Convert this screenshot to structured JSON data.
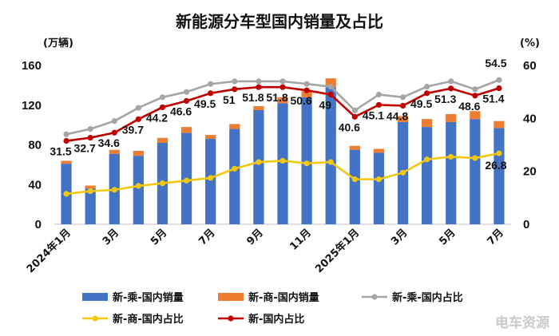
{
  "chart_data": {
    "type": "bar",
    "title": "新能源分车型国内销量及占比",
    "left_axis_unit": "(万辆)",
    "right_axis_unit": "(%)",
    "categories": [
      "2024年1月",
      "2月",
      "3月",
      "4月",
      "5月",
      "6月",
      "7月",
      "8月",
      "9月",
      "10月",
      "11月",
      "12月",
      "2025年1月",
      "2月",
      "3月",
      "4月",
      "5月",
      "6月",
      "7月"
    ],
    "x_tick_labels": [
      "2024年1月",
      "",
      "3月",
      "",
      "5月",
      "",
      "7月",
      "",
      "9月",
      "",
      "11月",
      "",
      "2025年1月",
      "",
      "3月",
      "",
      "5月",
      "",
      "7月"
    ],
    "ylim_left": [
      0,
      160
    ],
    "yticks_left": [
      "0",
      "40",
      "80",
      "120",
      "160"
    ],
    "ylim_right": [
      0,
      60
    ],
    "yticks_right": [
      "0",
      "20",
      "40",
      "60"
    ],
    "stacked": true,
    "series": [
      {
        "name": "新-乘-国内销量",
        "kind": "bar",
        "axis": "left",
        "color": "#4472c4",
        "values": [
          61,
          36,
          71,
          69,
          82,
          92,
          86,
          96,
          115,
          122,
          128,
          138,
          75,
          72,
          103,
          98,
          103,
          106,
          97
        ]
      },
      {
        "name": "新-商-国内销量",
        "kind": "bar",
        "axis": "left",
        "color": "#ed7d31",
        "values": [
          3,
          3,
          4,
          5,
          5,
          6,
          4,
          5,
          4,
          6,
          6,
          9,
          4,
          4,
          6,
          8,
          8,
          8,
          7
        ]
      },
      {
        "name": "新-乘-国内占比",
        "kind": "line",
        "axis": "right",
        "color": "#a5a5a5",
        "values": [
          34,
          36,
          39,
          44,
          48,
          50,
          53,
          54,
          54,
          54,
          53,
          52,
          43,
          49,
          48,
          52,
          54,
          51,
          54.5
        ]
      },
      {
        "name": "新-商-国内占比",
        "kind": "line",
        "axis": "right",
        "color": "#f2c80f",
        "values": [
          11.5,
          12.5,
          13,
          14.5,
          15.5,
          16.5,
          17.5,
          21,
          23.5,
          24,
          23,
          23.5,
          17,
          17,
          19.5,
          24.5,
          25.5,
          25,
          26.8
        ]
      },
      {
        "name": "新-国内占比",
        "kind": "line",
        "axis": "right",
        "color": "#c00000",
        "values": [
          31.5,
          32.7,
          34.6,
          39.7,
          44.2,
          46.6,
          49.5,
          51,
          51.8,
          51.8,
          50.6,
          49,
          40.6,
          45.1,
          44.8,
          49.5,
          51.3,
          48.6,
          51.4
        ]
      }
    ],
    "data_labels": [
      {
        "index": 0,
        "text": "31.5"
      },
      {
        "index": 1,
        "text": "32.7"
      },
      {
        "index": 2,
        "text": "34.6"
      },
      {
        "index": 3,
        "text": "39.7"
      },
      {
        "index": 4,
        "text": "44.2"
      },
      {
        "index": 5,
        "text": "46.6"
      },
      {
        "index": 6,
        "text": "49.5"
      },
      {
        "index": 7,
        "text": "51"
      },
      {
        "index": 8,
        "text": "51.8"
      },
      {
        "index": 9,
        "text": "51.8"
      },
      {
        "index": 10,
        "text": "50.6"
      },
      {
        "index": 11,
        "text": "49"
      },
      {
        "index": 12,
        "text": "40.6"
      },
      {
        "index": 13,
        "text": "45.1"
      },
      {
        "index": 14,
        "text": "44.8"
      },
      {
        "index": 15,
        "text": "49.5"
      },
      {
        "index": 16,
        "text": "51.3"
      },
      {
        "index": 17,
        "text": "48.6"
      },
      {
        "index": 18,
        "text": "51.4"
      }
    ],
    "end_labels": [
      {
        "series": "新-乘-国内占比",
        "text": "54.5"
      },
      {
        "series": "新-商-国内占比",
        "text": "26.8"
      }
    ],
    "legend_position": "bottom",
    "grid": false
  },
  "watermark": "电车资源"
}
